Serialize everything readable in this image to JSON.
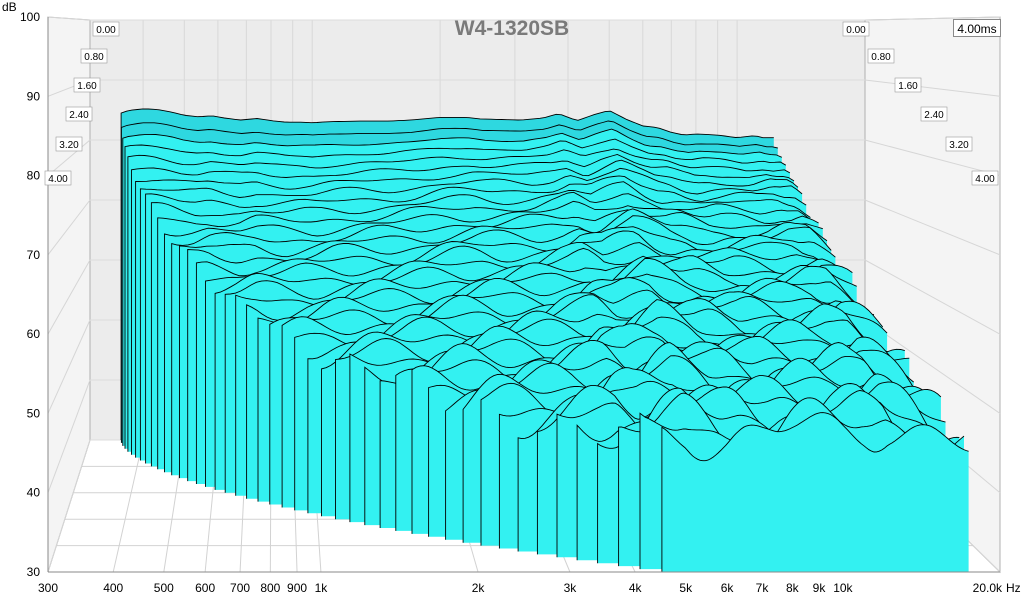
{
  "chart_data": {
    "type": "waterfall-3d",
    "title": "W4-1320SB",
    "end_time_label": "4.00ms",
    "y_unit": "dB",
    "x_unit": "Hz",
    "ylim": [
      30,
      100
    ],
    "y_ticks": [
      "30",
      "40",
      "50",
      "60",
      "70",
      "80",
      "90",
      "100"
    ],
    "xlim": [
      300,
      20000
    ],
    "x_scale": "log",
    "x_ticks": [
      {
        "label": "300",
        "hz": 300
      },
      {
        "label": "400",
        "hz": 400
      },
      {
        "label": "500",
        "hz": 500
      },
      {
        "label": "600",
        "hz": 600
      },
      {
        "label": "700",
        "hz": 700
      },
      {
        "label": "800",
        "hz": 800
      },
      {
        "label": "900",
        "hz": 900
      },
      {
        "label": "1k",
        "hz": 1000
      },
      {
        "label": "2k",
        "hz": 2000
      },
      {
        "label": "3k",
        "hz": 3000
      },
      {
        "label": "4k",
        "hz": 4000
      },
      {
        "label": "5k",
        "hz": 5000
      },
      {
        "label": "6k",
        "hz": 6000
      },
      {
        "label": "7k",
        "hz": 7000
      },
      {
        "label": "8k",
        "hz": 8000
      },
      {
        "label": "9k",
        "hz": 9000
      },
      {
        "label": "10k",
        "hz": 10000
      },
      {
        "label": "20.0k",
        "hz": 20000
      }
    ],
    "time_ticks_ms": [
      "0.00",
      "0.80",
      "1.60",
      "2.40",
      "3.20",
      "4.00"
    ],
    "time_range_ms": [
      0,
      4
    ],
    "slice_count": 46,
    "fill_color": "#33f1f1",
    "fill_color_back": "#2ed8e0",
    "line_color": "#000000",
    "grid_color": "#d2d2d2",
    "axis_color": "#8a8a8a",
    "first_slice": {
      "hz": [
        355,
        370,
        400,
        430,
        460,
        500,
        540,
        580,
        620,
        680,
        740,
        800,
        870,
        950,
        1000,
        1100,
        1300,
        1500,
        1700,
        2000,
        2300,
        2500,
        2800,
        3100,
        3500,
        3800,
        4200,
        4600,
        5000,
        5500,
        6000,
        6500,
        7000,
        7500,
        8000,
        9000,
        10000,
        10500,
        11000,
        11500,
        12200
      ],
      "db": [
        91.1,
        91.6,
        91.9,
        91.8,
        91.4,
        90.7,
        90.4,
        90.6,
        90.2,
        89.8,
        90.1,
        89.7,
        89.4,
        89.4,
        89.3,
        89.5,
        89.6,
        89.6,
        89.8,
        90.3,
        90.3,
        90.0,
        89.9,
        89.8,
        90.2,
        91.0,
        89.7,
        90.8,
        91.6,
        89.9,
        88.7,
        88.4,
        87.5,
        87.0,
        87.2,
        87.0,
        86.5,
        86.7,
        86.9,
        86.5,
        86.5
      ]
    },
    "decay": {
      "floor_db": 31,
      "low_cutoff_hz_start": 355,
      "low_cutoff_hz_end": 4500
    }
  }
}
